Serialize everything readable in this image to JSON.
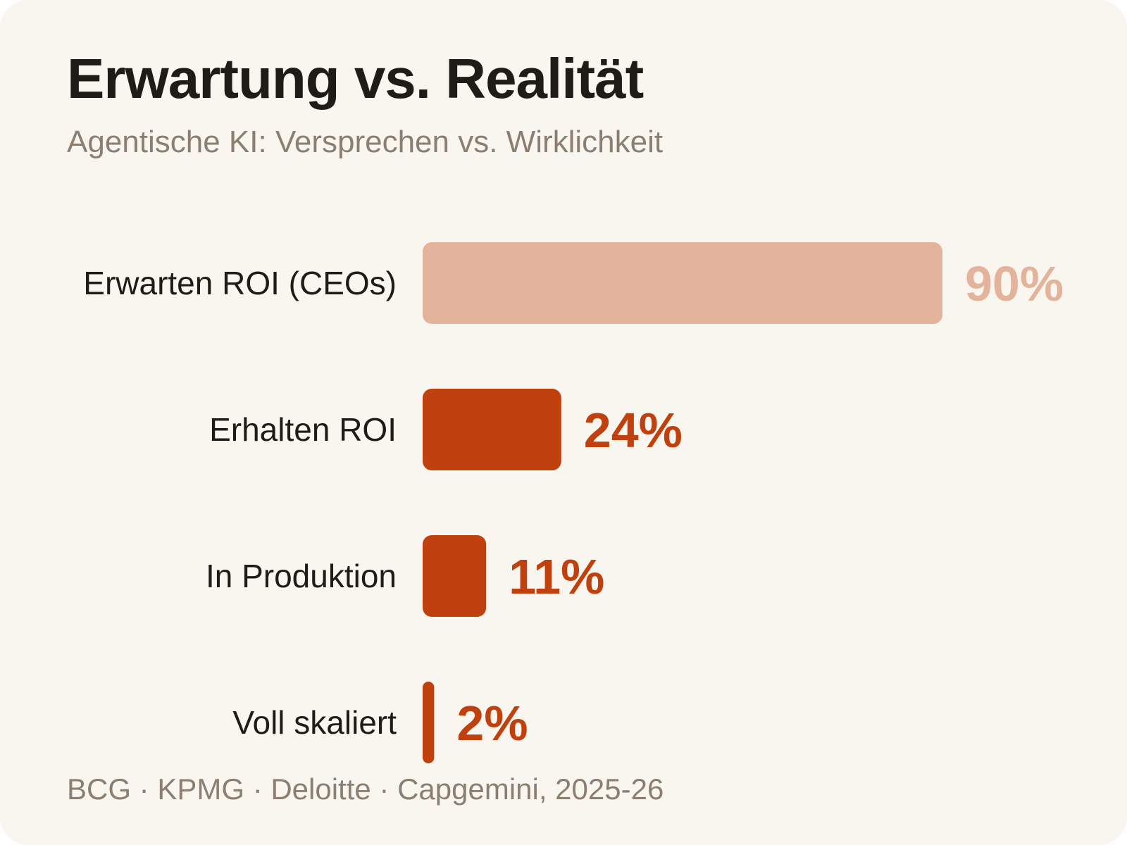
{
  "title": "Erwartung vs. Realität",
  "subtitle": "Agentische KI: Versprechen vs. Wirklichkeit",
  "source": "BCG · KPMG · Deloitte · Capgemini, 2025-26",
  "colors": {
    "background": "#f9f6f0",
    "bar_expectation": "#e3b49b",
    "bar_reality": "#c1410e",
    "title": "#1f1b17",
    "muted": "#8c7e71"
  },
  "chart_data": {
    "type": "bar",
    "orientation": "horizontal",
    "categories": [
      "Erwarten ROI (CEOs)",
      "Erhalten ROI",
      "In Produktion",
      "Voll skaliert"
    ],
    "values": [
      90,
      24,
      11,
      2
    ],
    "value_labels": [
      "90%",
      "24%",
      "11%",
      "2%"
    ],
    "unit": "%",
    "xlim": [
      0,
      90
    ],
    "grid": false,
    "legend": "none",
    "bar_colors": [
      "#e3b49b",
      "#c1410e",
      "#c1410e",
      "#c1410e"
    ]
  }
}
